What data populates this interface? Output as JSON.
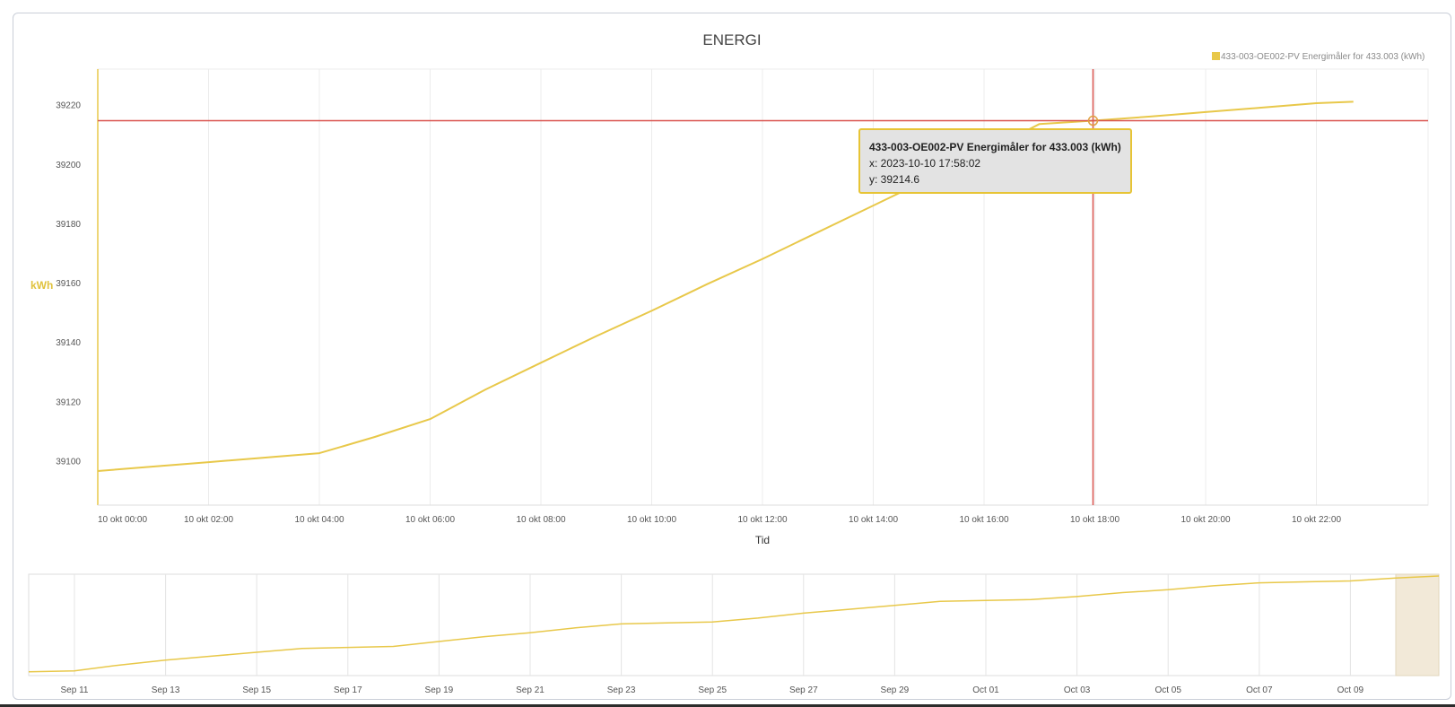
{
  "chart_data": {
    "type": "line",
    "title": "ENERGI",
    "xlabel": "Tid",
    "ylabel": "kWh",
    "legend": {
      "placement": "top-right"
    },
    "series": [
      {
        "name": "433-003-OE002-PV Energimåler for 433.003 (kWh)",
        "color": "#e8c84a",
        "points": [
          {
            "x": "2023-10-10 00:00",
            "y": 39096.5
          },
          {
            "x": "2023-10-10 01:00",
            "y": 39098.0
          },
          {
            "x": "2023-10-10 02:00",
            "y": 39099.5
          },
          {
            "x": "2023-10-10 03:00",
            "y": 39101.0
          },
          {
            "x": "2023-10-10 04:00",
            "y": 39102.5
          },
          {
            "x": "2023-10-10 05:00",
            "y": 39108.0
          },
          {
            "x": "2023-10-10 06:00",
            "y": 39114.0
          },
          {
            "x": "2023-10-10 07:00",
            "y": 39124.0
          },
          {
            "x": "2023-10-10 08:00",
            "y": 39133.0
          },
          {
            "x": "2023-10-10 09:00",
            "y": 39142.0
          },
          {
            "x": "2023-10-10 10:00",
            "y": 39150.5
          },
          {
            "x": "2023-10-10 11:00",
            "y": 39159.5
          },
          {
            "x": "2023-10-10 12:00",
            "y": 39168.0
          },
          {
            "x": "2023-10-10 13:00",
            "y": 39177.0
          },
          {
            "x": "2023-10-10 14:00",
            "y": 39186.0
          },
          {
            "x": "2023-10-10 15:00",
            "y": 39195.0
          },
          {
            "x": "2023-10-10 16:00",
            "y": 39204.0
          },
          {
            "x": "2023-10-10 17:00",
            "y": 39213.5
          },
          {
            "x": "2023-10-10 17:58:02",
            "y": 39214.6
          },
          {
            "x": "2023-10-10 19:00",
            "y": 39216.0
          },
          {
            "x": "2023-10-10 20:00",
            "y": 39217.5
          },
          {
            "x": "2023-10-10 21:00",
            "y": 39219.0
          },
          {
            "x": "2023-10-10 22:00",
            "y": 39220.5
          },
          {
            "x": "2023-10-10 22:40",
            "y": 39221.0
          }
        ]
      }
    ],
    "x_ticks": [
      "10 okt 00:00",
      "10 okt 02:00",
      "10 okt 04:00",
      "10 okt 06:00",
      "10 okt 08:00",
      "10 okt 10:00",
      "10 okt 12:00",
      "10 okt 14:00",
      "10 okt 16:00",
      "10 okt 18:00",
      "10 okt 20:00",
      "10 okt 22:00"
    ],
    "y_ticks": [
      "39100",
      "39120",
      "39140",
      "39160",
      "39180",
      "39200",
      "39220"
    ],
    "xlim": [
      "2023-10-10 00:00",
      "2023-10-10 24:00"
    ],
    "ylim": [
      39085,
      39232
    ],
    "grid": true,
    "crosshair": {
      "x": "2023-10-10 17:58:02",
      "y": 39214.6,
      "color": "#d9534f"
    },
    "tooltip": {
      "title": "433-003-OE002-PV Energimåler for 433.003 (kWh)",
      "x_text": "x: 2023-10-10 17:58:02",
      "y_text": "y: 39214.6"
    },
    "navigator": {
      "x_ticks": [
        "Sep 11",
        "Sep 13",
        "Sep 15",
        "Sep 17",
        "Sep 19",
        "Sep 21",
        "Sep 23",
        "Sep 25",
        "Sep 27",
        "Sep 29",
        "Oct 01",
        "Oct 03",
        "Oct 05",
        "Oct 07",
        "Oct 09"
      ],
      "selected_range": [
        "2023-10-10",
        "2023-10-11"
      ],
      "series": [
        {
          "x": "2023-09-10",
          "y": 0.02
        },
        {
          "x": "2023-09-11",
          "y": 0.03
        },
        {
          "x": "2023-09-12",
          "y": 0.09
        },
        {
          "x": "2023-09-13",
          "y": 0.14
        },
        {
          "x": "2023-09-14",
          "y": 0.18
        },
        {
          "x": "2023-09-15",
          "y": 0.22
        },
        {
          "x": "2023-09-16",
          "y": 0.26
        },
        {
          "x": "2023-09-17",
          "y": 0.27
        },
        {
          "x": "2023-09-18",
          "y": 0.28
        },
        {
          "x": "2023-09-19",
          "y": 0.33
        },
        {
          "x": "2023-09-20",
          "y": 0.38
        },
        {
          "x": "2023-09-21",
          "y": 0.42
        },
        {
          "x": "2023-09-22",
          "y": 0.47
        },
        {
          "x": "2023-09-23",
          "y": 0.51
        },
        {
          "x": "2023-09-24",
          "y": 0.52
        },
        {
          "x": "2023-09-25",
          "y": 0.53
        },
        {
          "x": "2023-09-26",
          "y": 0.57
        },
        {
          "x": "2023-09-27",
          "y": 0.62
        },
        {
          "x": "2023-09-28",
          "y": 0.66
        },
        {
          "x": "2023-09-29",
          "y": 0.7
        },
        {
          "x": "2023-09-30",
          "y": 0.74
        },
        {
          "x": "2023-10-01",
          "y": 0.75
        },
        {
          "x": "2023-10-02",
          "y": 0.76
        },
        {
          "x": "2023-10-03",
          "y": 0.79
        },
        {
          "x": "2023-10-04",
          "y": 0.83
        },
        {
          "x": "2023-10-05",
          "y": 0.86
        },
        {
          "x": "2023-10-06",
          "y": 0.9
        },
        {
          "x": "2023-10-07",
          "y": 0.93
        },
        {
          "x": "2023-10-08",
          "y": 0.94
        },
        {
          "x": "2023-10-09",
          "y": 0.95
        },
        {
          "x": "2023-10-10",
          "y": 0.98
        },
        {
          "x": "2023-10-11",
          "y": 1.0
        }
      ]
    }
  }
}
